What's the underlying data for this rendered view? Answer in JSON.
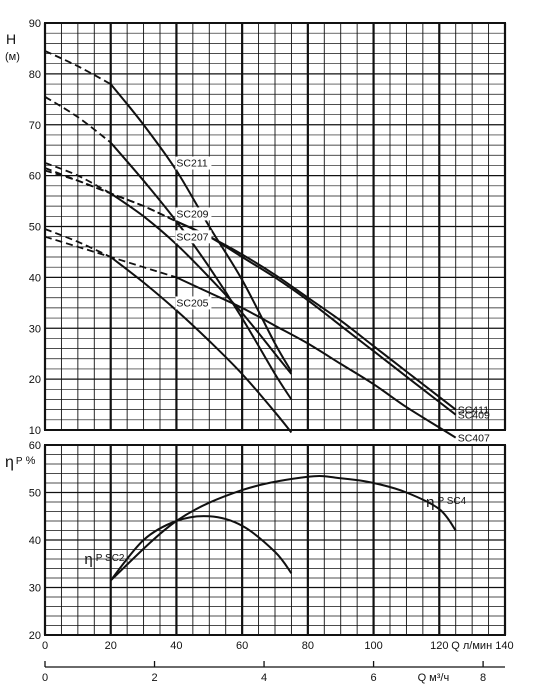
{
  "chart_data": [
    {
      "type": "line",
      "panel": "head",
      "ylabel": "H",
      "yunit": "(м)",
      "ylim": [
        10,
        90
      ],
      "yticks": [
        10,
        20,
        30,
        40,
        50,
        60,
        70,
        80,
        90
      ],
      "xlim": [
        0,
        140
      ],
      "grid": true,
      "series": [
        {
          "name": "SC211",
          "label_position": "on-curve",
          "dashed": [
            [
              0,
              84.5
            ],
            [
              10,
              81.5
            ],
            [
              20,
              78
            ]
          ],
          "solid": [
            [
              20,
              78
            ],
            [
              30,
              70
            ],
            [
              40,
              61
            ],
            [
              50,
              50
            ],
            [
              60,
              39.5
            ],
            [
              70,
              27
            ],
            [
              75,
              21.5
            ]
          ]
        },
        {
          "name": "SC209",
          "label_position": "on-curve",
          "dashed": [
            [
              0,
              75.5
            ],
            [
              10,
              71.5
            ],
            [
              20,
              66.5
            ]
          ],
          "solid": [
            [
              20,
              66.5
            ],
            [
              30,
              59
            ],
            [
              40,
              51
            ],
            [
              50,
              42
            ],
            [
              60,
              32
            ],
            [
              70,
              21
            ],
            [
              75,
              16
            ]
          ]
        },
        {
          "name": "SC207",
          "label_position": "on-curve",
          "dashed": [
            [
              0,
              62.5
            ],
            [
              10,
              60
            ],
            [
              20,
              56.5
            ]
          ],
          "solid": [
            [
              20,
              56.5
            ],
            [
              30,
              52
            ],
            [
              40,
              46.5
            ],
            [
              50,
              40
            ],
            [
              60,
              33
            ],
            [
              70,
              25
            ],
            [
              75,
              21
            ]
          ]
        },
        {
          "name": "SC205",
          "label_position": "on-curve",
          "dashed": [
            [
              0,
              49.5
            ],
            [
              10,
              47
            ],
            [
              20,
              44
            ]
          ],
          "solid": [
            [
              20,
              44
            ],
            [
              30,
              39
            ],
            [
              40,
              33.5
            ],
            [
              50,
              27.5
            ],
            [
              60,
              21
            ],
            [
              70,
              13.5
            ],
            [
              75,
              9.5
            ]
          ]
        },
        {
          "name": "SC411",
          "label_position": "end",
          "dashed": [
            [
              0,
              61.5
            ],
            [
              10,
              59
            ],
            [
              20,
              56.5
            ],
            [
              30,
              54
            ],
            [
              40,
              51
            ]
          ],
          "solid": [
            [
              40,
              51
            ],
            [
              50,
              48
            ],
            [
              60,
              44.5
            ],
            [
              70,
              40.5
            ],
            [
              80,
              36
            ],
            [
              90,
              31.5
            ],
            [
              100,
              26.5
            ],
            [
              110,
              21.5
            ],
            [
              120,
              16.5
            ],
            [
              125,
              14
            ]
          ]
        },
        {
          "name": "SC409",
          "label_position": "end",
          "dashed": [
            [
              0,
              61
            ],
            [
              10,
              59
            ],
            [
              20,
              56.5
            ],
            [
              30,
              54
            ],
            [
              40,
              51
            ]
          ],
          "solid": [
            [
              40,
              51
            ],
            [
              50,
              48
            ],
            [
              60,
              44
            ],
            [
              70,
              40
            ],
            [
              80,
              35.5
            ],
            [
              90,
              30.5
            ],
            [
              100,
              25.5
            ],
            [
              110,
              20.5
            ],
            [
              120,
              15.5
            ],
            [
              125,
              13
            ]
          ]
        },
        {
          "name": "SC407",
          "label_position": "end",
          "dashed": [
            [
              0,
              48
            ],
            [
              10,
              46
            ],
            [
              20,
              44
            ],
            [
              30,
              42
            ],
            [
              40,
              40
            ]
          ],
          "solid": [
            [
              40,
              40
            ],
            [
              50,
              37
            ],
            [
              60,
              34
            ],
            [
              70,
              30.5
            ],
            [
              80,
              27
            ],
            [
              90,
              23
            ],
            [
              100,
              19
            ],
            [
              110,
              14.5
            ],
            [
              120,
              10.5
            ],
            [
              125,
              8.5
            ]
          ]
        }
      ]
    },
    {
      "type": "line",
      "panel": "efficiency",
      "ylabel": "η P %",
      "ylim": [
        20,
        60
      ],
      "yticks": [
        20,
        30,
        40,
        50,
        60
      ],
      "xlabel": "Q л/мин",
      "xlim": [
        0,
        140
      ],
      "xticks": [
        0,
        20,
        40,
        60,
        80,
        100,
        120,
        140
      ],
      "x2label": "Q м³/ч",
      "x2ticks": [
        0,
        2,
        4,
        6,
        8
      ],
      "grid": true,
      "series": [
        {
          "name": "η P SC2",
          "prefix": "η",
          "suffix": "P SC2",
          "label_position": "left",
          "points": [
            [
              20,
              31.5
            ],
            [
              30,
              40
            ],
            [
              40,
              44
            ],
            [
              50,
              45
            ],
            [
              60,
              43
            ],
            [
              70,
              37.5
            ],
            [
              75,
              33
            ]
          ]
        },
        {
          "name": "η P SC4",
          "prefix": "η",
          "suffix": "P SC4",
          "label_position": "right",
          "points": [
            [
              20,
              31.5
            ],
            [
              40,
              44
            ],
            [
              60,
              50.5
            ],
            [
              80,
              53.3
            ],
            [
              90,
              53
            ],
            [
              100,
              52
            ],
            [
              110,
              50
            ],
            [
              120,
              46.5
            ],
            [
              125,
              42
            ]
          ]
        }
      ]
    }
  ]
}
